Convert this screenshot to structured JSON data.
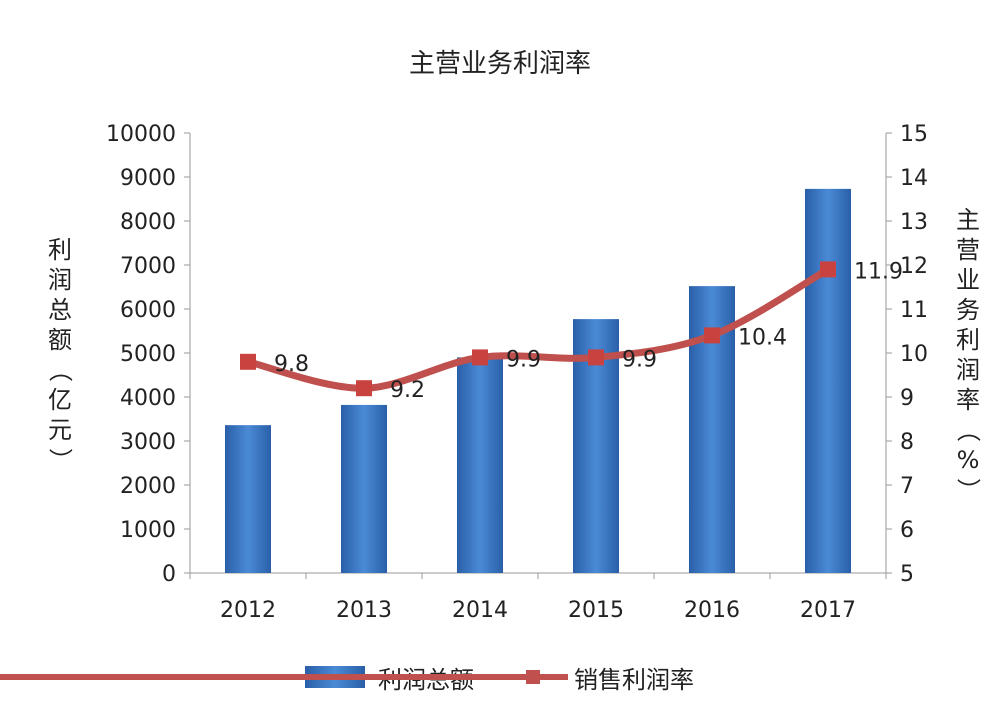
{
  "chart_data": {
    "type": "bar+line",
    "title": "主营业务利润率",
    "categories": [
      "2012",
      "2013",
      "2014",
      "2015",
      "2016",
      "2017"
    ],
    "series": [
      {
        "name": "利润总额",
        "type": "bar",
        "axis": "left",
        "values": [
          3360,
          3820,
          4900,
          5770,
          6520,
          8730
        ],
        "color": "#3a78c2"
      },
      {
        "name": "销售利润率",
        "type": "line",
        "axis": "right",
        "values": [
          9.8,
          9.2,
          9.9,
          9.9,
          10.4,
          11.9
        ],
        "labels": [
          "9.8",
          "9.2",
          "9.9",
          "9.9",
          "10.4",
          "11.9"
        ],
        "color": "#c0504d"
      }
    ],
    "ylabel_left": "利润总额（亿元）",
    "ylabel_right": "主营业务利润率（%）",
    "ylim_left": [
      0,
      10000
    ],
    "yticks_left": [
      "0",
      "1000",
      "2000",
      "3000",
      "4000",
      "5000",
      "6000",
      "7000",
      "8000",
      "9000",
      "10000"
    ],
    "ylim_right": [
      5,
      15
    ],
    "yticks_right": [
      "5",
      "6",
      "7",
      "8",
      "9",
      "10",
      "11",
      "12",
      "13",
      "14",
      "15"
    ],
    "grid": false,
    "legend": "bottom"
  }
}
